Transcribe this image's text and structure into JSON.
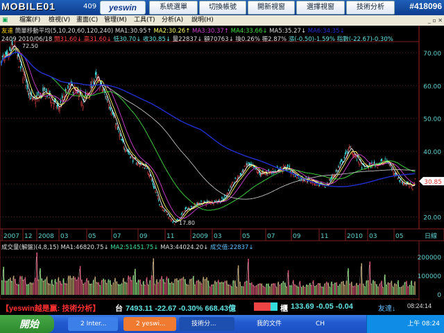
{
  "topbar": {
    "logo": "MOBILE01",
    "code_fragment": "409",
    "brand": "yeswin",
    "buttons": [
      "系統選單",
      "切換帳號",
      "開新視窗",
      "選擇視窗",
      "技術分析"
    ],
    "watermark": "#418096"
  },
  "menu": {
    "items": [
      "檔案(F)",
      "檢視(V)",
      "畫面(C)",
      "管理(M)",
      "工具(T)",
      "分析(A)",
      "說明(H)"
    ]
  },
  "info": {
    "line1": [
      {
        "t": "友達",
        "c": "#ffd700"
      },
      {
        "t": " 簡單移動平均(5,10,20,60,120,240) MA1:30.95↑",
        "c": "#ddd"
      },
      {
        "t": " MA2:30.26↑",
        "c": "#ffff66"
      },
      {
        "t": " MA3:30.37↑",
        "c": "#d040d0"
      },
      {
        "t": " MA4:33.66↓",
        "c": "#40e040"
      },
      {
        "t": " MA5:35.27↓",
        "c": "#ddd"
      },
      {
        "t": " MA6:34.35↓",
        "c": "#2030d0"
      }
    ],
    "line2": [
      {
        "t": "2409 2010/06/18 ",
        "c": "#ddd"
      },
      {
        "t": "開31.60↓ 高31.60↓",
        "c": "#ff4040"
      },
      {
        "t": " 低30.70↓ 收30.85↓",
        "c": "#60e0e0"
      },
      {
        "t": " 量22837↓ 額70763↓ 換0.26% 振2.87%",
        "c": "#ddd"
      },
      {
        "t": " 漲(-0.50)-1.59% 指數(-22.67)-0.30%",
        "c": "#60e0e0"
      }
    ]
  },
  "chart_data": {
    "type": "candlestick",
    "price_axis": {
      "ticks": [
        "70.00",
        "60.00",
        "50.00",
        "40.00",
        "20.00"
      ],
      "range": [
        15,
        76
      ]
    },
    "last_price": "30.85",
    "high_label": "72.50",
    "low_label": "17.80",
    "x_ticks": [
      "2007",
      "12",
      "2008",
      "03",
      "05",
      "07",
      "09",
      "11",
      "2009",
      "03",
      "05",
      "07",
      "09",
      "11",
      "2010",
      "03",
      "05"
    ],
    "period_label": "日線",
    "close_path": [
      [
        "2007-10",
        68
      ],
      [
        "2007-10-29",
        72.5
      ],
      [
        "2007-11",
        66
      ],
      [
        "2007-12",
        55
      ],
      [
        "2008-01",
        58
      ],
      [
        "2008-02",
        53
      ],
      [
        "2008-03",
        60
      ],
      [
        "2008-04",
        55
      ],
      [
        "2008-05",
        62.5
      ],
      [
        "2008-06",
        55
      ],
      [
        "2008-07",
        43
      ],
      [
        "2008-08",
        37
      ],
      [
        "2008-09",
        35
      ],
      [
        "2008-10",
        24
      ],
      [
        "2008-11-20",
        17.8
      ],
      [
        "2008-12",
        22
      ],
      [
        "2009-01",
        24
      ],
      [
        "2009-03",
        25
      ],
      [
        "2009-04",
        31
      ],
      [
        "2009-05",
        36
      ],
      [
        "2009-06",
        33
      ],
      [
        "2009-07",
        34
      ],
      [
        "2009-08",
        35
      ],
      [
        "2009-09",
        32
      ],
      [
        "2009-10",
        31
      ],
      [
        "2009-11",
        29
      ],
      [
        "2009-12",
        34
      ],
      [
        "2010-01",
        41
      ],
      [
        "2010-02",
        35
      ],
      [
        "2010-03",
        36
      ],
      [
        "2010-04",
        37
      ],
      [
        "2010-05",
        31
      ],
      [
        "2010-06",
        29
      ],
      [
        "2010-06-18",
        30.85
      ]
    ],
    "ma_colors": [
      "#ffffff",
      "#ffff66",
      "#d040d0",
      "#40e040",
      "#c0c0c0",
      "#2030d0"
    ],
    "volume": {
      "header": [
        {
          "t": "成交量(解盤)(4,8,15) MA1:46820.75↓",
          "c": "#ddd"
        },
        {
          "t": " MA2:51451.75↓",
          "c": "#40e0a0"
        },
        {
          "t": " MA3:44024.20↓",
          "c": "#ddd"
        },
        {
          "t": " 成交值:22837↓",
          "c": "#60c0ff"
        }
      ],
      "ticks": [
        "200000",
        "100000",
        "0"
      ],
      "range": [
        0,
        260000
      ]
    }
  },
  "ticker": {
    "title": "【yeswin越是贏: 技術分析】",
    "taiex_label": "台",
    "taiex": "7493.11 -22.67 -0.30% 668.43億",
    "otc_label": "櫃",
    "otc": "133.69 -0.05 -0.04",
    "stock": "友達↓",
    "time": "08:24:14"
  },
  "taskbar": {
    "start": "開始",
    "tasks": [
      "2 Inter...",
      "2 yeswi...",
      "技術分...",
      "我的文件"
    ],
    "tray_lang": "CH",
    "clock": "上午 08:24"
  }
}
